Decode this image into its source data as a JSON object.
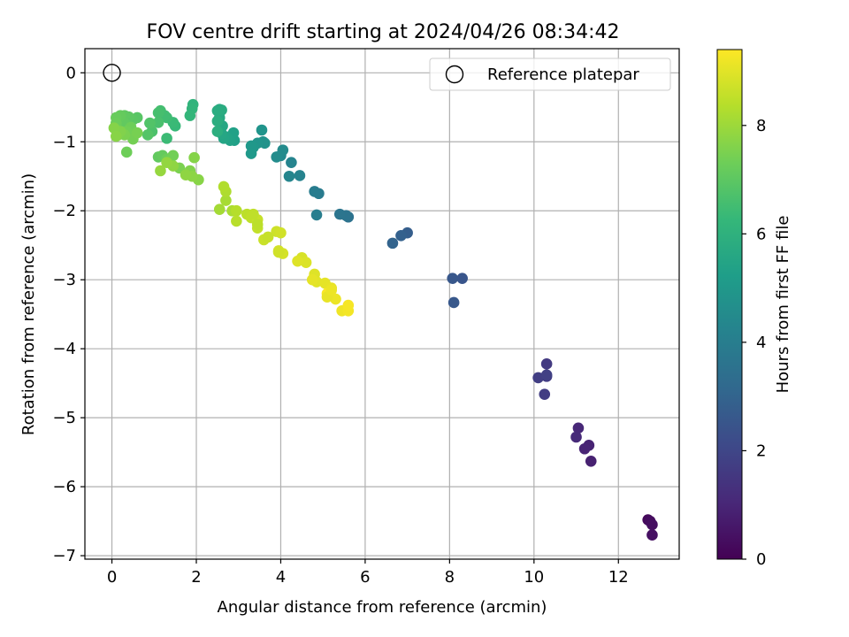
{
  "chart_data": {
    "type": "scatter",
    "title": "FOV centre drift starting at 2024/04/26 08:34:42",
    "xlabel": "Angular distance from reference (arcmin)",
    "ylabel": "Rotation from reference (arcmin)",
    "xlim": [
      -0.64,
      13.44
    ],
    "ylim": [
      -7.05,
      0.35
    ],
    "xticks": [
      0,
      2,
      4,
      6,
      8,
      10,
      12
    ],
    "yticks": [
      0,
      -1,
      -2,
      -3,
      -4,
      -5,
      -6,
      -7
    ],
    "grid": true,
    "legend": {
      "placement": "top-right",
      "entries": [
        "Reference platepar"
      ]
    },
    "reference_point": {
      "x": 0,
      "y": 0,
      "marker": "open-circle"
    },
    "colorbar": {
      "label": "Hours from first FF file",
      "range": [
        0,
        9.4
      ],
      "ticks": [
        0,
        2,
        4,
        6,
        8
      ],
      "colormap": "viridis",
      "colors": [
        "#440154",
        "#482878",
        "#3e4989",
        "#31688e",
        "#26828e",
        "#1f9e89",
        "#35b779",
        "#6ece58",
        "#b5de2b",
        "#fde725"
      ]
    },
    "series": [
      {
        "x": [
          12.7,
          12.75,
          12.8,
          12.8,
          11.35,
          11.3,
          11.2,
          11.05,
          11.0,
          10.3,
          10.3,
          10.25,
          10.1,
          10.3,
          8.3,
          8.07,
          8.1,
          7.0,
          6.85,
          6.65,
          5.6,
          5.55,
          5.4,
          4.9,
          4.8,
          4.85,
          4.45,
          4.25,
          4.2,
          4.0,
          4.05,
          3.9,
          3.58,
          3.62,
          3.55,
          3.45,
          3.35,
          3.3,
          3.3,
          2.9,
          2.88,
          2.8,
          2.72,
          2.65,
          2.6,
          2.62,
          2.55,
          2.55,
          2.6,
          2.5,
          2.5,
          2.5,
          1.92,
          1.9,
          1.85,
          1.5,
          1.45,
          1.3,
          1.3,
          1.25,
          1.15,
          1.1,
          1.1,
          0.95,
          0.9,
          0.9,
          0.85,
          0.6,
          0.5,
          0.4,
          0.3,
          0.3,
          0.2,
          0.1,
          0.1,
          0.45,
          0.35,
          0.5,
          0.6,
          0.3,
          0.15,
          0.2,
          0.05,
          0.1,
          0.35,
          1.1,
          1.2,
          1.3,
          1.45,
          1.6,
          1.85,
          1.95,
          2.05,
          1.9,
          1.75,
          1.45,
          1.3,
          1.15,
          2.55,
          2.7,
          2.85,
          2.7,
          2.65,
          2.95,
          2.95,
          3.2,
          3.3,
          3.45,
          3.45,
          3.6,
          3.9,
          4.0,
          4.05,
          4.5,
          4.6,
          4.8,
          4.85,
          5.05,
          5.2,
          5.3,
          5.45,
          5.6,
          5.6,
          5.1,
          4.75,
          4.4,
          3.95,
          3.95,
          3.7,
          3.35,
          3.45,
          5.1,
          5.2
        ],
        "y": [
          -6.48,
          -6.5,
          -6.55,
          -6.7,
          -5.63,
          -5.4,
          -5.45,
          -5.15,
          -5.28,
          -4.22,
          -4.4,
          -4.66,
          -4.42,
          -4.38,
          -2.98,
          -2.98,
          -3.33,
          -2.32,
          -2.36,
          -2.47,
          -2.09,
          -2.07,
          -2.05,
          -1.75,
          -1.72,
          -2.06,
          -1.49,
          -1.3,
          -1.5,
          -1.2,
          -1.12,
          -1.22,
          -1.0,
          -1.02,
          -0.83,
          -1.02,
          -1.08,
          -1.06,
          -1.17,
          -0.98,
          -0.87,
          -0.98,
          -0.93,
          -0.95,
          -0.88,
          -0.77,
          -0.65,
          -0.53,
          -0.54,
          -0.55,
          -0.7,
          -0.85,
          -0.46,
          -0.52,
          -0.62,
          -0.77,
          -0.72,
          -0.95,
          -0.65,
          -0.62,
          -0.55,
          -0.58,
          -0.72,
          -0.85,
          -0.73,
          -0.73,
          -0.9,
          -0.65,
          -0.68,
          -0.64,
          -0.62,
          -0.73,
          -0.62,
          -0.65,
          -0.73,
          -0.79,
          -0.85,
          -0.96,
          -0.87,
          -0.9,
          -0.9,
          -0.85,
          -0.8,
          -0.92,
          -1.15,
          -1.22,
          -1.2,
          -1.25,
          -1.2,
          -1.38,
          -1.42,
          -1.23,
          -1.55,
          -1.5,
          -1.48,
          -1.35,
          -1.3,
          -1.42,
          -1.98,
          -1.85,
          -2.0,
          -1.72,
          -1.65,
          -2.0,
          -2.15,
          -2.05,
          -2.1,
          -2.25,
          -2.13,
          -2.42,
          -2.3,
          -2.32,
          -2.62,
          -2.68,
          -2.75,
          -2.92,
          -3.03,
          -3.05,
          -3.12,
          -3.28,
          -3.45,
          -3.45,
          -3.37,
          -3.2,
          -3.0,
          -2.73,
          -2.58,
          -2.6,
          -2.38,
          -2.05,
          -2.2,
          -3.25,
          -3.15
        ],
        "t": [
          0.2,
          0.3,
          0.35,
          0.4,
          0.85,
          0.9,
          0.95,
          1.05,
          1.1,
          1.6,
          1.65,
          1.7,
          1.75,
          1.8,
          2.5,
          2.55,
          2.6,
          2.8,
          2.9,
          3.0,
          3.55,
          3.6,
          3.65,
          3.9,
          3.95,
          4.0,
          4.2,
          4.25,
          4.3,
          4.45,
          4.5,
          4.55,
          4.75,
          4.8,
          4.85,
          4.9,
          4.95,
          5.0,
          5.05,
          5.3,
          5.35,
          5.4,
          5.45,
          5.5,
          5.55,
          5.6,
          5.65,
          5.7,
          5.75,
          5.8,
          5.85,
          5.9,
          6.1,
          6.15,
          6.2,
          6.3,
          6.35,
          6.4,
          6.45,
          6.5,
          6.55,
          6.6,
          6.65,
          6.7,
          6.75,
          6.8,
          6.85,
          6.9,
          6.95,
          7.0,
          7.05,
          7.1,
          7.15,
          7.2,
          7.25,
          7.3,
          7.35,
          7.4,
          7.45,
          7.5,
          7.55,
          7.6,
          7.65,
          7.7,
          7.3,
          7.1,
          7.15,
          7.25,
          7.35,
          7.5,
          7.6,
          7.65,
          7.7,
          7.75,
          7.8,
          7.8,
          7.85,
          7.9,
          8.1,
          8.15,
          8.2,
          8.25,
          8.3,
          8.35,
          8.4,
          8.45,
          8.5,
          8.55,
          8.6,
          8.65,
          8.7,
          8.75,
          8.8,
          8.85,
          8.9,
          8.95,
          9.0,
          9.05,
          9.1,
          9.15,
          9.2,
          9.25,
          9.3,
          9.35,
          9.05,
          8.95,
          8.8,
          8.75,
          8.6,
          8.5,
          8.45,
          9.1,
          9.15
        ]
      }
    ]
  }
}
